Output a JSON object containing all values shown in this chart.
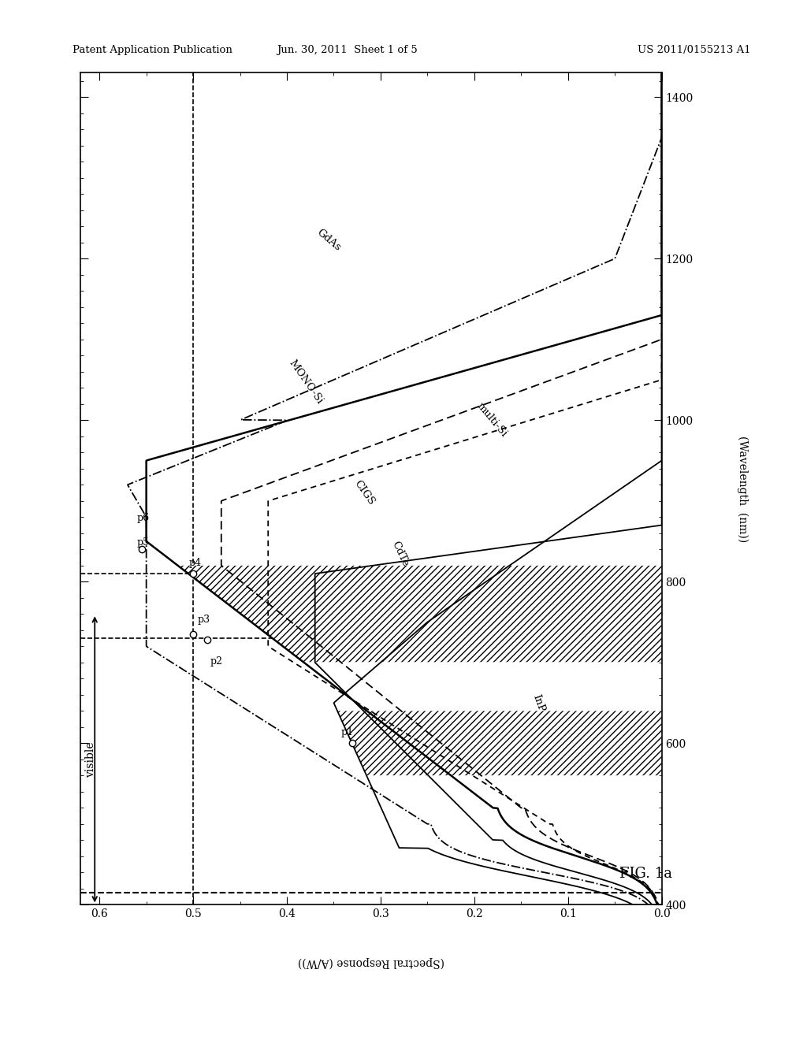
{
  "title_left": "Patent Application Publication",
  "title_center": "Jun. 30, 2011  Sheet 1 of 5",
  "title_right": "US 2011/0155213 A1",
  "fig_label": "FIG. 1a",
  "xlabel_rotated": "(Wavelength  (nm))",
  "ylabel_rotated": "(Spectral Response (A/W))",
  "background_color": "#ffffff",
  "text_color": "#000000"
}
